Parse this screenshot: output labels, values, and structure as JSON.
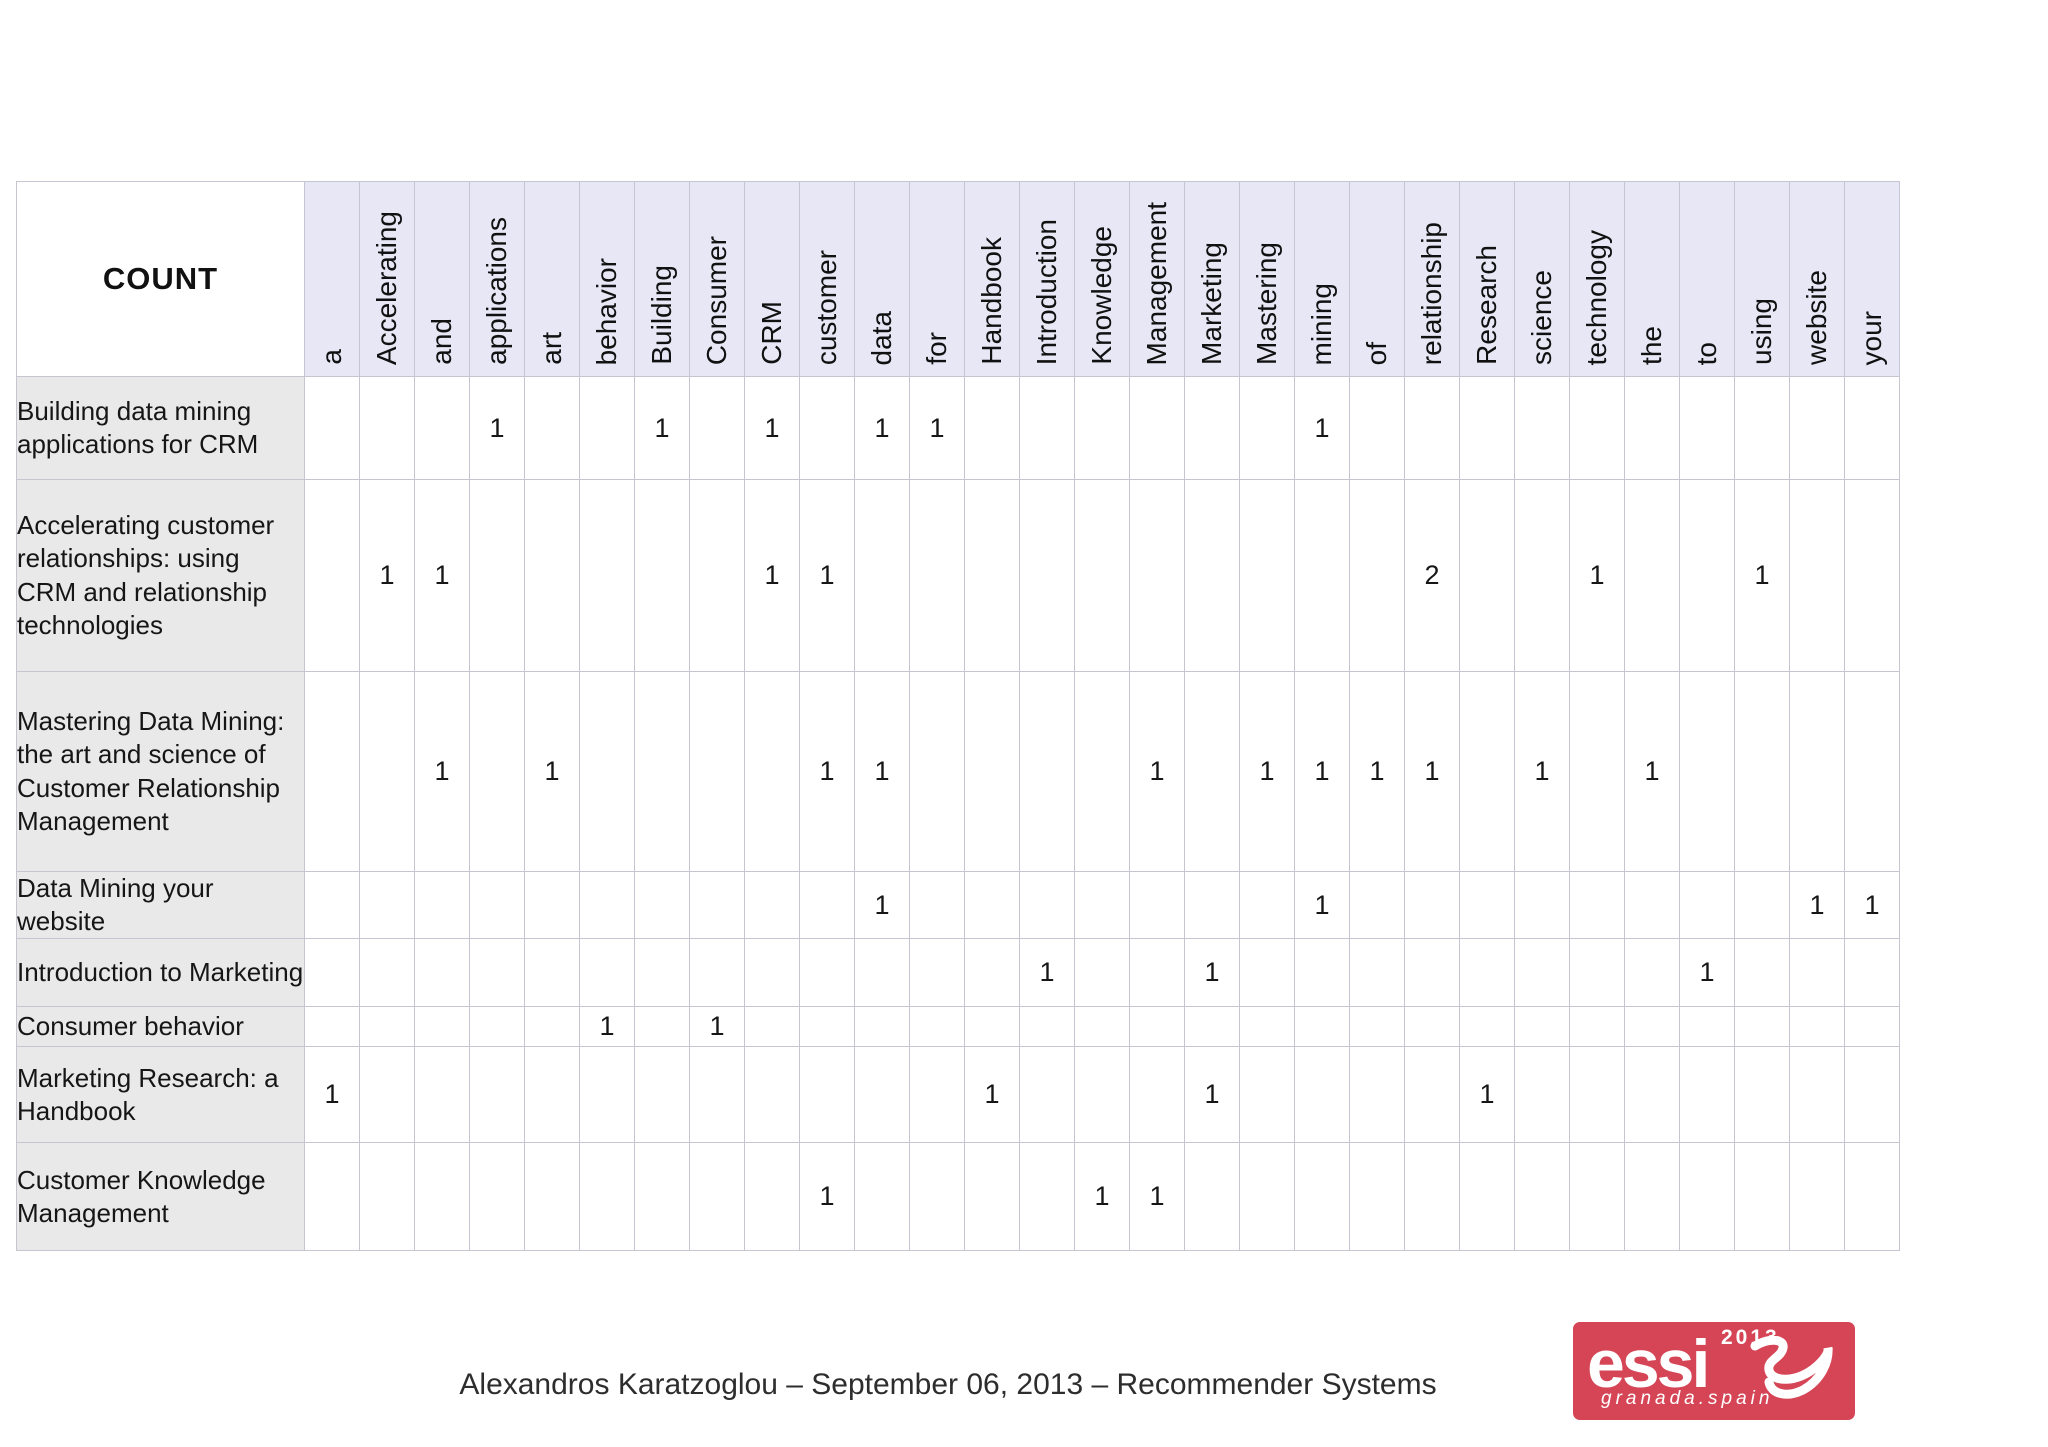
{
  "table": {
    "corner_label": "COUNT",
    "columns": [
      "a",
      "Accelerating",
      "and",
      "applications",
      "art",
      "behavior",
      "Building",
      "Consumer",
      "CRM",
      "customer",
      "data",
      "for",
      "Handbook",
      "Introduction",
      "Knowledge",
      "Management",
      "Marketing",
      "Mastering",
      "mining",
      "of",
      "relationship",
      "Research",
      "science",
      "technology",
      "the",
      "to",
      "using",
      "website",
      "your"
    ],
    "rows": [
      {
        "label": "Building data mining applications for CRM",
        "counts": {
          "applications": 1,
          "Building": 1,
          "CRM": 1,
          "data": 1,
          "for": 1,
          "mining": 1
        }
      },
      {
        "label": "Accelerating customer relationships: using CRM and relationship technologies",
        "counts": {
          "Accelerating": 1,
          "and": 1,
          "CRM": 1,
          "customer": 1,
          "relationship": 2,
          "technology": 1,
          "using": 1
        }
      },
      {
        "label": "Mastering Data Mining: the art and science of Customer Relationship Management",
        "counts": {
          "and": 1,
          "art": 1,
          "customer": 1,
          "data": 1,
          "Management": 1,
          "Mastering": 1,
          "mining": 1,
          "of": 1,
          "relationship": 1,
          "science": 1,
          "the": 1
        }
      },
      {
        "label": "Data Mining your website",
        "counts": {
          "data": 1,
          "mining": 1,
          "website": 1,
          "your": 1
        }
      },
      {
        "label": "Introduction to Marketing",
        "counts": {
          "Introduction": 1,
          "Marketing": 1,
          "to": 1
        }
      },
      {
        "label": "Consumer behavior",
        "counts": {
          "behavior": 1,
          "Consumer": 1
        }
      },
      {
        "label": "Marketing Research: a Handbook",
        "counts": {
          "a": 1,
          "Handbook": 1,
          "Marketing": 1,
          "Research": 1
        }
      },
      {
        "label": "Customer Knowledge Management",
        "counts": {
          "customer": 1,
          "Knowledge": 1,
          "Management": 1
        }
      }
    ]
  },
  "footer": {
    "caption": "Alexandros Karatzoglou – September 06, 2013 – Recommender Systems"
  },
  "logo": {
    "year": "2013",
    "wordmark": "essir",
    "subtitle": "granada.spain",
    "background_color": "#d54556",
    "text_color": "#ffffff"
  }
}
